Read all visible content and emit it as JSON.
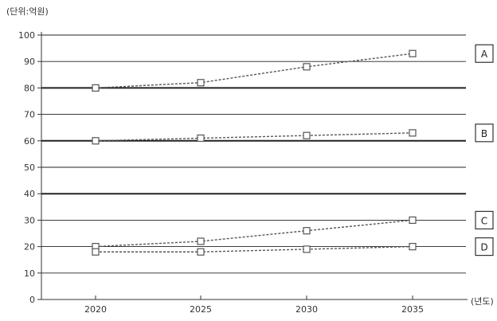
{
  "chart_data": {
    "type": "line",
    "title": "",
    "ylabel": "(단위:억원)",
    "xlabel": "",
    "x_unit": "(년도)",
    "categories": [
      "2020",
      "2025",
      "2030",
      "2035"
    ],
    "ylim": [
      0,
      100
    ],
    "yticks": [
      "0",
      "10",
      "20",
      "30",
      "40",
      "50",
      "60",
      "70",
      "80",
      "90",
      "100"
    ],
    "grid": true,
    "legend_position": "right",
    "series": [
      {
        "name": "A",
        "values": [
          80,
          82,
          88,
          93
        ]
      },
      {
        "name": "B",
        "values": [
          60,
          61,
          62,
          63
        ]
      },
      {
        "name": "C",
        "values": [
          20,
          22,
          26,
          30
        ]
      },
      {
        "name": "D",
        "values": [
          18,
          18,
          19,
          20
        ]
      }
    ],
    "colors": {
      "line": "#555555",
      "grid": "#222222",
      "axis": "#333333"
    }
  }
}
